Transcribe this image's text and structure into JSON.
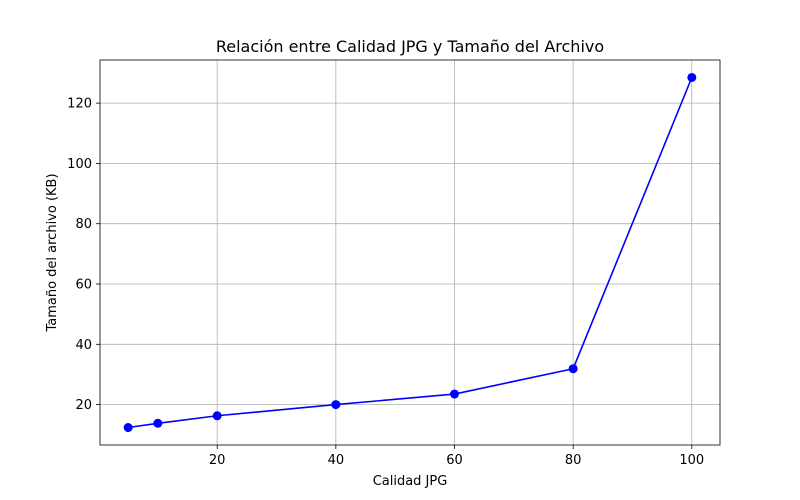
{
  "chart_data": {
    "type": "line",
    "title": "Relación entre Calidad JPG y Tamaño del Archivo",
    "xlabel": "Calidad JPG",
    "ylabel": "Tamaño del archivo (KB)",
    "x": [
      5,
      10,
      20,
      40,
      60,
      80,
      100
    ],
    "series": [
      {
        "values": [
          12.4,
          13.8,
          16.3,
          20.0,
          23.5,
          31.9,
          128.5
        ],
        "color": "#0000ff",
        "marker": "circle"
      }
    ],
    "xlim": [
      0.25,
      104.75
    ],
    "ylim": [
      6.6,
      134.3
    ],
    "xticks": [
      20,
      40,
      60,
      80,
      100
    ],
    "yticks": [
      20,
      40,
      60,
      80,
      100,
      120
    ],
    "grid": true
  }
}
